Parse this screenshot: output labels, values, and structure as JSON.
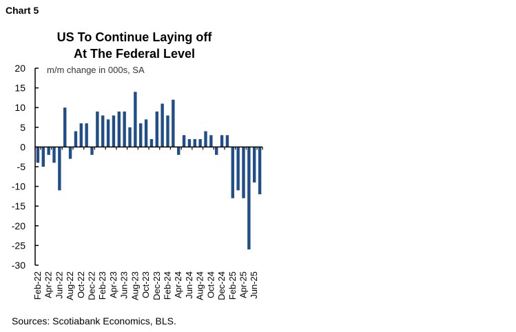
{
  "chart_number": "Chart 5",
  "source": "Sources: Scotiabank Economics, BLS.",
  "chart_data": {
    "type": "bar",
    "title": "US To Continue Laying off At The Federal Level",
    "title_lines": [
      "US To Continue Laying off",
      "At The Federal Level"
    ],
    "annotation": "m/m change in 000s, SA",
    "ylim": [
      -30,
      20
    ],
    "yticks": [
      20,
      15,
      10,
      5,
      0,
      -5,
      -10,
      -15,
      -20,
      -25,
      -30
    ],
    "grid": false,
    "bar_color": "#1f4e89",
    "categories": [
      "Feb-22",
      "Mar-22",
      "Apr-22",
      "May-22",
      "Jun-22",
      "Jul-22",
      "Aug-22",
      "Sep-22",
      "Oct-22",
      "Nov-22",
      "Dec-22",
      "Jan-23",
      "Feb-23",
      "Mar-23",
      "Apr-23",
      "May-23",
      "Jun-23",
      "Jul-23",
      "Aug-23",
      "Sep-23",
      "Oct-23",
      "Nov-23",
      "Dec-23",
      "Jan-24",
      "Feb-24",
      "Mar-24",
      "Apr-24",
      "May-24",
      "Jun-24",
      "Jul-24",
      "Aug-24",
      "Sep-24",
      "Oct-24",
      "Nov-24",
      "Dec-24",
      "Jan-25",
      "Feb-25",
      "Mar-25",
      "Apr-25",
      "May-25",
      "Jun-25",
      "Jul-25"
    ],
    "values": [
      -4,
      -5,
      -2,
      -4,
      -11,
      10,
      -3,
      4,
      6,
      6,
      -2,
      9,
      8,
      7,
      8,
      9,
      9,
      5,
      14,
      6,
      7,
      2,
      9,
      11,
      8,
      12,
      -2,
      3,
      2,
      2,
      2,
      4,
      3,
      -2,
      3,
      3,
      -13,
      -11,
      -13,
      -26,
      -9,
      -12
    ],
    "tick_labels": [
      "Feb-22",
      "Apr-22",
      "Jun-22",
      "Aug-22",
      "Oct-22",
      "Dec-22",
      "Feb-23",
      "Apr-23",
      "Jun-23",
      "Aug-23",
      "Oct-23",
      "Dec-23",
      "Feb-24",
      "Apr-24",
      "Jun-24",
      "Aug-24",
      "Oct-24",
      "Dec-24",
      "Feb-25",
      "Apr-25",
      "Jun-25"
    ]
  }
}
